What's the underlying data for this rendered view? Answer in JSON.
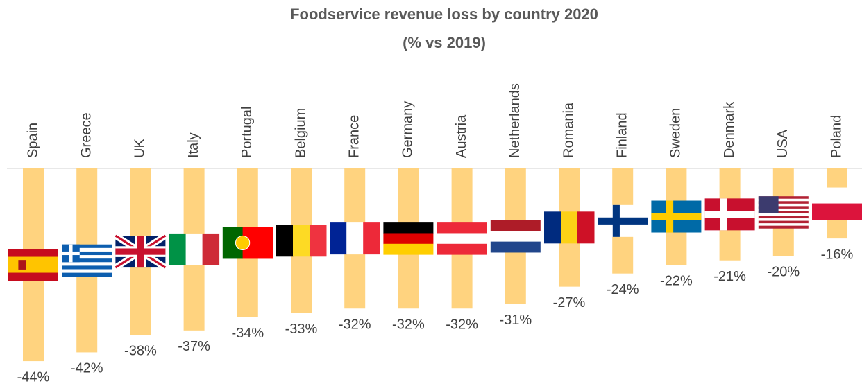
{
  "chart_data": {
    "type": "bar",
    "title": "Foodservice revenue loss by country 2020",
    "subtitle": "(% vs 2019)",
    "categories": [
      "Spain",
      "Greece",
      "UK",
      "Italy",
      "Portugal",
      "Belgium",
      "France",
      "Germany",
      "Austria",
      "Netherlands",
      "Romania",
      "Finland",
      "Sweden",
      "Denmark",
      "USA",
      "Poland"
    ],
    "values": [
      -44,
      -42,
      -38,
      -37,
      -34,
      -33,
      -32,
      -32,
      -32,
      -31,
      -27,
      -24,
      -22,
      -21,
      -20,
      -16
    ],
    "value_labels": [
      "-44%",
      "-42%",
      "-38%",
      "-37%",
      "-34%",
      "-33%",
      "-32%",
      "-32%",
      "-32%",
      "-31%",
      "-27%",
      "-24%",
      "-22%",
      "-21%",
      "-20%",
      "-16%"
    ],
    "color": "#ffd37f"
  }
}
